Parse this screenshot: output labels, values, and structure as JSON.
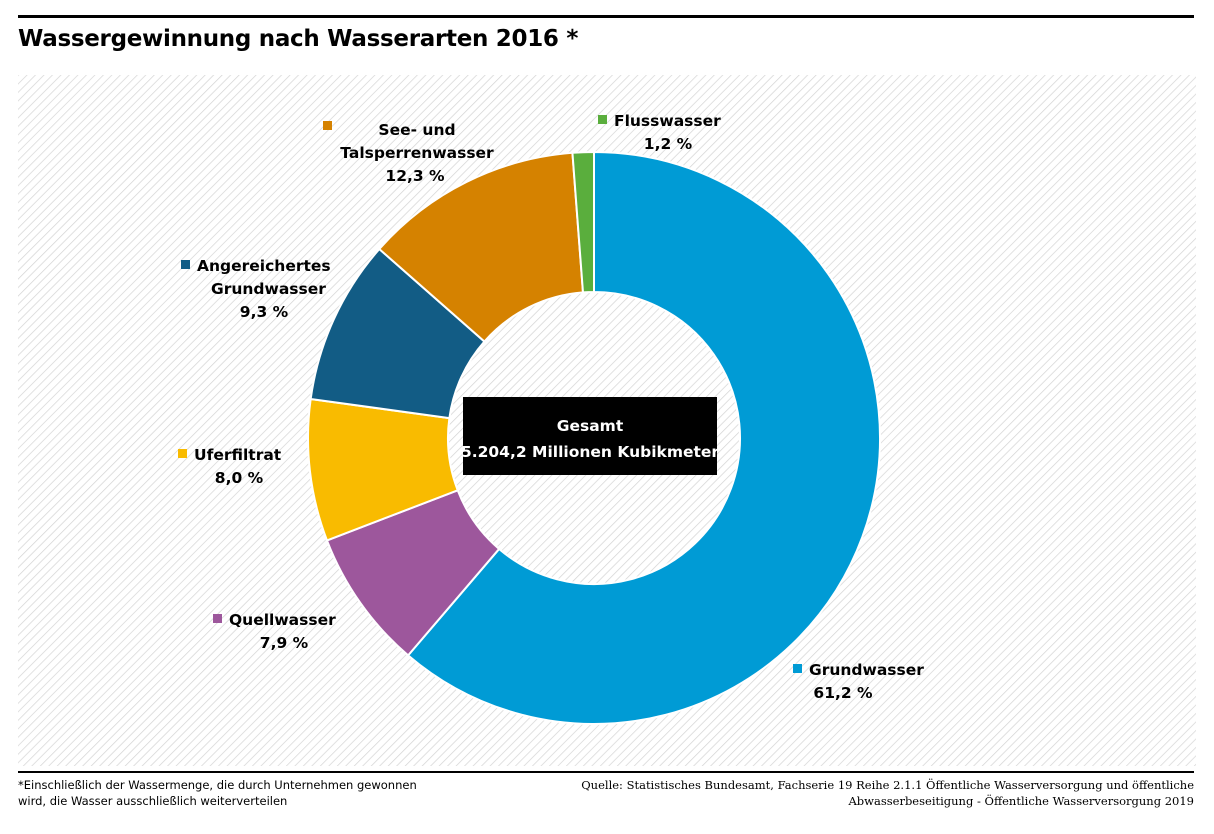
{
  "title": "Wassergewinnung nach Wasserarten 2016 *",
  "chart_data": {
    "type": "pie",
    "variant": "donut",
    "categories": [
      "Grundwasser",
      "Quellwasser",
      "Uferfiltrat",
      "Angereichertes Grundwasser",
      "See- und Talsperrenwasser",
      "Flusswasser"
    ],
    "values": [
      61.2,
      7.9,
      8.0,
      9.3,
      12.3,
      1.2
    ],
    "value_labels": [
      "61,2 %",
      "7,9 %",
      "8,0 %",
      "9,3 %",
      "12,3 %",
      "1,2 %"
    ],
    "label_lines": [
      [
        "Grundwasser"
      ],
      [
        "Quellwasser"
      ],
      [
        "Uferfiltrat"
      ],
      [
        "Angereichertes",
        "Grundwasser"
      ],
      [
        "See- und",
        "Talsperrenwasser"
      ],
      [
        "Flusswasser"
      ]
    ],
    "colors": [
      "#009bd5",
      "#9d579c",
      "#f9bb00",
      "#125c85",
      "#d58200",
      "#5aae3d"
    ],
    "start": "top, clockwise",
    "center_label": [
      "Gesamt",
      "5.204,2 Millionen Kubikmeter"
    ],
    "background": "diagonal hatch"
  },
  "footnote": {
    "line1": "*Einschließlich der Wassermenge, die durch Unternehmen gewonnen",
    "line2": "wird, die Wasser ausschließlich weiterverteilen"
  },
  "source": {
    "line1": "Quelle: Statistisches Bundesamt, Fachserie 19  Reihe 2.1.1 Öffentliche Wasserversorgung und öffentliche",
    "line2": "Abwasserbeseitigung - Öffentliche Wasserversorgung 2019"
  }
}
